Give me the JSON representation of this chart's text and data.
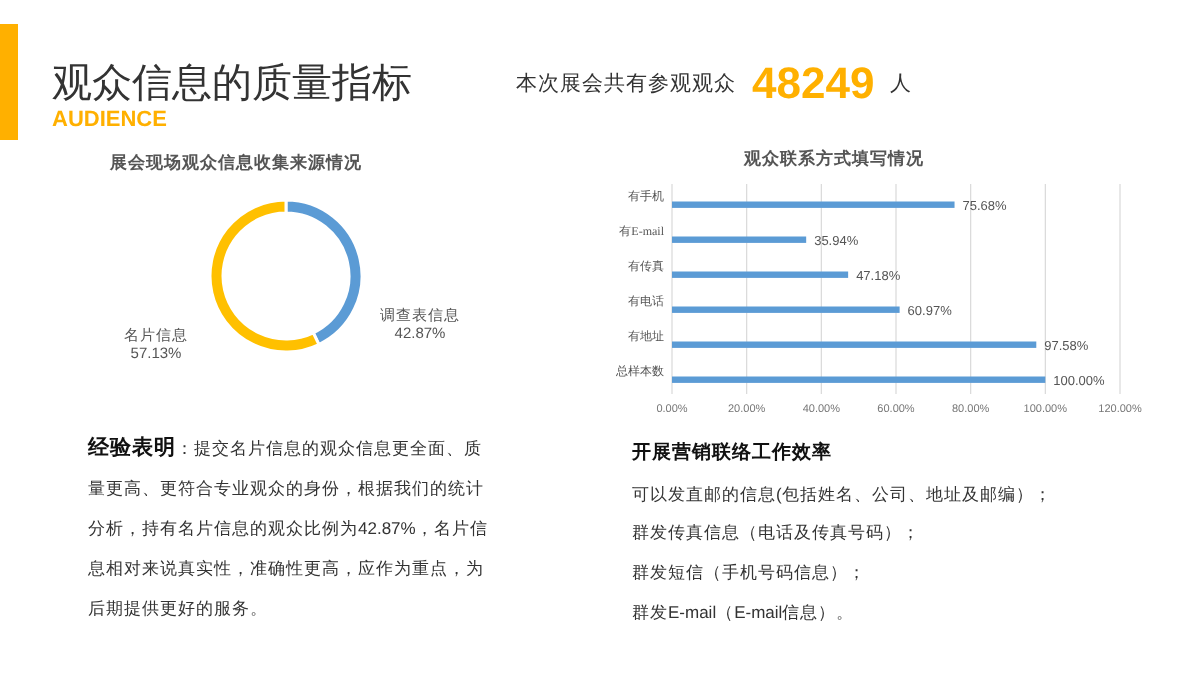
{
  "chart_data": [
    {
      "type": "other",
      "title": "观众信息的质量指标",
      "subtitle": "AUDIENCE",
      "annotations": [
        "本次展会共有参观观众",
        "48249",
        "人"
      ]
    },
    {
      "type": "donut",
      "title": "展会现场观众信息收集来源情况",
      "categories": [
        "调查表信息",
        "名片信息"
      ],
      "values": [
        42.87,
        57.13
      ],
      "colors": [
        "#5b9bd5",
        "#ffc000"
      ],
      "value_labels": [
        "42.87%",
        "57.13%"
      ]
    },
    {
      "type": "bar",
      "orientation": "horizontal",
      "title": "观众联系方式填写情况",
      "categories": [
        "有手机",
        "有E-mail",
        "有传真",
        "有电话",
        "有地址",
        "总样本数"
      ],
      "series": [
        {
          "color": "#5b9bd5",
          "values": [
            75.68,
            35.94,
            47.18,
            60.97,
            97.58,
            100.0
          ],
          "value_labels": [
            "75.68%",
            "35.94%",
            "47.18%",
            "60.97%",
            "97.58%",
            "100.00%"
          ]
        }
      ],
      "xlim": [
        0,
        120
      ],
      "xticks": [
        {
          "value": 0,
          "label": "0.00%"
        },
        {
          "value": 20,
          "label": "20.00%"
        },
        {
          "value": 40,
          "label": "40.00%"
        },
        {
          "value": 60,
          "label": "60.00%"
        },
        {
          "value": 80,
          "label": "80.00%"
        },
        {
          "value": 100,
          "label": "100.00%"
        },
        {
          "value": 120,
          "label": "120.00%"
        }
      ],
      "grid": "x"
    },
    {
      "type": "other",
      "title": "经验表明",
      "annotations": [
        "：提交名片信息的观众信息更全面、质量更高、更符合专业观众的身份，根据我们的统计分析，持有名片信息的观众比例为42.87%，名片信息相对来说真实性，准确性更高，应作为重点，为后期提供更好的服务。"
      ]
    },
    {
      "type": "other",
      "title": "开展营销联络工作效率",
      "annotations": [
        "可以发直邮的信息(包括姓名、公司、地址及邮编）；",
        "群发传真信息（电话及传真号码）；",
        "群发短信（手机号码信息）；",
        "群发E-mail（E-mail信息）。"
      ]
    }
  ]
}
